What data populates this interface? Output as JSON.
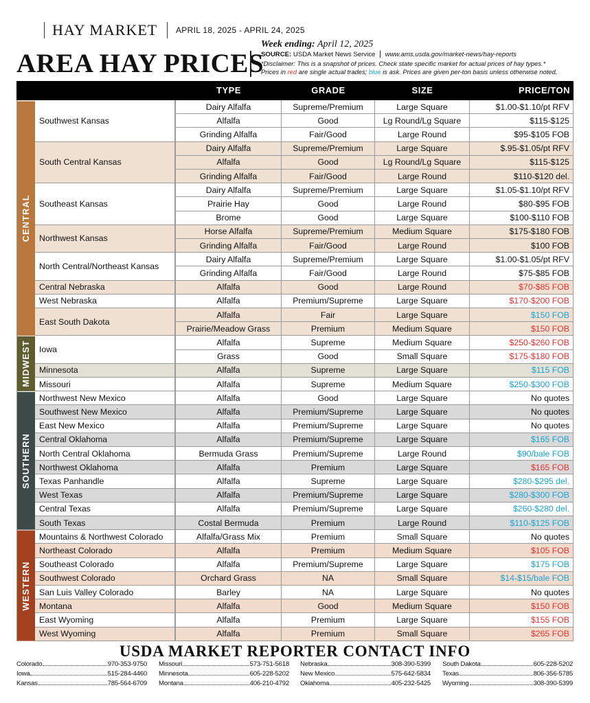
{
  "header": {
    "brand": "HAY MARKET",
    "dates": "APRIL 18, 2025 - APRIL 24, 2025",
    "title": "AREA HAY PRICES",
    "week_label": "Week ending:",
    "week_date": "April 12, 2025",
    "source_label": "SOURCE:",
    "source": "USDA Market News Service",
    "url": "www.ams.usda.gov/market-news/hay-reports",
    "disclaimer": "*Disclaimer: This is a snapshot of prices. Check state specific market for actual prices of hay types.*",
    "note": [
      "Prices in ",
      "red",
      " are single actual trades; ",
      "blue",
      " is ask. Prices are given per-ton basis unless otherwise noted."
    ]
  },
  "table": {
    "columns": [
      "TYPE",
      "GRADE",
      "SIZE",
      "PRICE/TON"
    ],
    "regions": [
      {
        "name": "CENTRAL",
        "color": "#b8773b",
        "tint": "#efe0d2",
        "locations": [
          {
            "name": "Southwest Kansas",
            "rows": [
              {
                "type": "Dairy Alfalfa",
                "grade": "Supreme/Premium",
                "size": "Large Square",
                "price": "$1.00-$1.10/pt RFV",
                "color": "#111111"
              },
              {
                "type": "Alfalfa",
                "grade": "Good",
                "size": "Lg Round/Lg Square",
                "price": "$115-$125",
                "color": "#111111"
              },
              {
                "type": "Grinding Alfalfa",
                "grade": "Fair/Good",
                "size": "Large Round",
                "price": "$95-$105 FOB",
                "color": "#111111"
              }
            ]
          },
          {
            "name": "South Central Kansas",
            "rows": [
              {
                "type": "Dairy Alfalfa",
                "grade": "Supreme/Premium",
                "size": "Large Square",
                "price": "$.95-$1.05/pt RFV",
                "color": "#111111"
              },
              {
                "type": "Alfalfa",
                "grade": "Good",
                "size": "Lg Round/Lg Square",
                "price": "$115-$125",
                "color": "#111111"
              },
              {
                "type": "Grinding Alfalfa",
                "grade": "Fair/Good",
                "size": "Large Round",
                "price": "$110-$120 del.",
                "color": "#111111"
              }
            ]
          },
          {
            "name": "Southeast Kansas",
            "rows": [
              {
                "type": "Dairy Alfalfa",
                "grade": "Supreme/Premium",
                "size": "Large Square",
                "price": "$1.05-$1.10/pt RFV",
                "color": "#111111"
              },
              {
                "type": "Prairie Hay",
                "grade": "Good",
                "size": "Large Round",
                "price": "$80-$95 FOB",
                "color": "#111111"
              },
              {
                "type": "Brome",
                "grade": "Good",
                "size": "Large Square",
                "price": "$100-$110 FOB",
                "color": "#111111"
              }
            ]
          },
          {
            "name": "Northwest Kansas",
            "rows": [
              {
                "type": "Horse Alfalfa",
                "grade": "Supreme/Premium",
                "size": "Medium Square",
                "price": "$175-$180 FOB",
                "color": "#111111"
              },
              {
                "type": "Grinding Alfalfa",
                "grade": "Fair/Good",
                "size": "Large Round",
                "price": "$100 FOB",
                "color": "#111111"
              }
            ]
          },
          {
            "name": "North Central/Northeast Kansas",
            "rows": [
              {
                "type": "Dairy Alfalfa",
                "grade": "Supreme/Premium",
                "size": "Large Square",
                "price": "$1.00-$1.05/pt RFV",
                "color": "#111111"
              },
              {
                "type": "Grinding Alfalfa",
                "grade": "Fair/Good",
                "size": "Large Round",
                "price": "$75-$85 FOB",
                "color": "#111111"
              }
            ]
          },
          {
            "name": "Central Nebraska",
            "rows": [
              {
                "type": "Alfalfa",
                "grade": "Good",
                "size": "Large Round",
                "price": "$70-$85 FOB",
                "color": "#e8312f"
              }
            ]
          },
          {
            "name": "West Nebraska",
            "rows": [
              {
                "type": "Alfalfa",
                "grade": "Premium/Supreme",
                "size": "Large Square",
                "price": "$170-$200 FOB",
                "color": "#e8312f"
              }
            ]
          },
          {
            "name": "East South Dakota",
            "rows": [
              {
                "type": "Alfalfa",
                "grade": "Fair",
                "size": "Large Square",
                "price": "$150 FOB",
                "color": "#1aa3d4"
              },
              {
                "type": "Prairie/Meadow Grass",
                "grade": "Premium",
                "size": "Medium Square",
                "price": "$150 FOB",
                "color": "#e8312f"
              }
            ]
          }
        ]
      },
      {
        "name": "MIDWEST",
        "color": "#5f5c2f",
        "tint": "#e3e1d6",
        "locations": [
          {
            "name": "Iowa",
            "rows": [
              {
                "type": "Alfalfa",
                "grade": "Supreme",
                "size": "Medium Square",
                "price": "$250-$260 FOB",
                "color": "#e8312f"
              },
              {
                "type": "Grass",
                "grade": "Good",
                "size": "Small Square",
                "price": "$175-$180 FOB",
                "color": "#e8312f"
              }
            ]
          },
          {
            "name": "Minnesota",
            "rows": [
              {
                "type": "Alfalfa",
                "grade": "Supreme",
                "size": "Large Square",
                "price": "$115 FOB",
                "color": "#1aa3d4"
              }
            ]
          },
          {
            "name": "Missouri",
            "rows": [
              {
                "type": "Alfalfa",
                "grade": "Supreme",
                "size": "Medium Square",
                "price": "$250-$300 FOB",
                "color": "#1aa3d4"
              }
            ]
          }
        ]
      },
      {
        "name": "SOUTHERN",
        "color": "#3e4a48",
        "tint": "#d9d9d9",
        "locations": [
          {
            "name": "Northwest New Mexico",
            "rows": [
              {
                "type": "Alfalfa",
                "grade": "Good",
                "size": "Large Square",
                "price": "No quotes",
                "color": "#111111"
              }
            ]
          },
          {
            "name": "Southwest New Mexico",
            "rows": [
              {
                "type": "Alfalfa",
                "grade": "Premium/Supreme",
                "size": "Large Square",
                "price": "No quotes",
                "color": "#111111"
              }
            ]
          },
          {
            "name": "East New Mexico",
            "rows": [
              {
                "type": "Alfalfa",
                "grade": "Premium/Supreme",
                "size": "Large Square",
                "price": "No quotes",
                "color": "#111111"
              }
            ]
          },
          {
            "name": "Central Oklahoma",
            "rows": [
              {
                "type": "Alfalfa",
                "grade": "Premium/Supreme",
                "size": "Large Square",
                "price": "$165 FOB",
                "color": "#1aa3d4"
              }
            ]
          },
          {
            "name": "North Central Oklahoma",
            "rows": [
              {
                "type": "Bermuda Grass",
                "grade": "Premium/Supreme",
                "size": "Large Round",
                "price": "$90/bale FOB",
                "color": "#1aa3d4"
              }
            ]
          },
          {
            "name": "Northwest Oklahoma",
            "rows": [
              {
                "type": "Alfalfa",
                "grade": "Premium",
                "size": "Large Square",
                "price": "$165 FOB",
                "color": "#e8312f"
              }
            ]
          },
          {
            "name": "Texas Panhandle",
            "rows": [
              {
                "type": "Alfalfa",
                "grade": "Supreme",
                "size": "Large Square",
                "price": "$280-$295 del.",
                "color": "#1aa3d4"
              }
            ]
          },
          {
            "name": "West Texas",
            "rows": [
              {
                "type": "Alfalfa",
                "grade": "Premium/Supreme",
                "size": "Large Square",
                "price": "$280-$300 FOB",
                "color": "#1aa3d4"
              }
            ]
          },
          {
            "name": "Central Texas",
            "rows": [
              {
                "type": "Alfalfa",
                "grade": "Premium/Supreme",
                "size": "Large Square",
                "price": "$260-$280 del.",
                "color": "#1aa3d4"
              }
            ]
          },
          {
            "name": "South Texas",
            "rows": [
              {
                "type": "Costal Bermuda",
                "grade": "Premium",
                "size": "Large Round",
                "price": "$110-$125 FOB",
                "color": "#1aa3d4"
              }
            ]
          }
        ]
      },
      {
        "name": "WESTERN",
        "color": "#a2401f",
        "tint": "#f0dbcd",
        "locations": [
          {
            "name": "Mountains & Northwest Colorado",
            "rows": [
              {
                "type": "Alfalfa/Grass Mix",
                "grade": "Premium",
                "size": "Small Square",
                "price": "No quotes",
                "color": "#111111"
              }
            ]
          },
          {
            "name": "Northeast Colorado",
            "rows": [
              {
                "type": "Alfalfa",
                "grade": "Premium",
                "size": "Medium Square",
                "price": "$105 FOB",
                "color": "#e8312f"
              }
            ]
          },
          {
            "name": "Southeast Colorado",
            "rows": [
              {
                "type": "Alfalfa",
                "grade": "Premium/Supreme",
                "size": "Large Square",
                "price": "$175 FOB",
                "color": "#1aa3d4"
              }
            ]
          },
          {
            "name": "Southwest Colorado",
            "rows": [
              {
                "type": "Orchard Grass",
                "grade": "NA",
                "size": "Small Square",
                "price": "$14-$15/bale FOB",
                "color": "#1aa3d4"
              }
            ]
          },
          {
            "name": "San Luis Valley Colorado",
            "rows": [
              {
                "type": "Barley",
                "grade": "NA",
                "size": "Large Square",
                "price": "No quotes",
                "color": "#111111"
              }
            ]
          },
          {
            "name": "Montana",
            "rows": [
              {
                "type": "Alfalfa",
                "grade": "Good",
                "size": "Medium Square",
                "price": "$150 FOB",
                "color": "#e8312f"
              }
            ]
          },
          {
            "name": "East Wyoming",
            "rows": [
              {
                "type": "Alfalfa",
                "grade": "Premium",
                "size": "Large Square",
                "price": "$155 FOB",
                "color": "#e8312f"
              }
            ]
          },
          {
            "name": "West Wyoming",
            "rows": [
              {
                "type": "Alfalfa",
                "grade": "Premium",
                "size": "Small Square",
                "price": "$265 FOB",
                "color": "#e8312f"
              }
            ]
          }
        ]
      }
    ]
  },
  "footer": {
    "title": "USDA MARKET REPORTER CONTACT INFO",
    "contacts": [
      [
        [
          "Colorado",
          "970-353-9750"
        ],
        [
          "Iowa",
          "515-284-4460"
        ],
        [
          "Kansas",
          "785-564-6709"
        ]
      ],
      [
        [
          "Missouri",
          "573-751-5618"
        ],
        [
          "Minnesota",
          "605-228-5202"
        ],
        [
          "Montana",
          "406-210-4792"
        ]
      ],
      [
        [
          "Nebraska",
          "308-390-5399"
        ],
        [
          "New Mexico",
          "575-642-5834"
        ],
        [
          "Oklahoma",
          "405-232-5425"
        ]
      ],
      [
        [
          "South Dakota",
          "605-228-5202"
        ],
        [
          "Texas",
          "806-356-5785"
        ],
        [
          "Wyoming",
          "308-390-5399"
        ]
      ]
    ]
  }
}
